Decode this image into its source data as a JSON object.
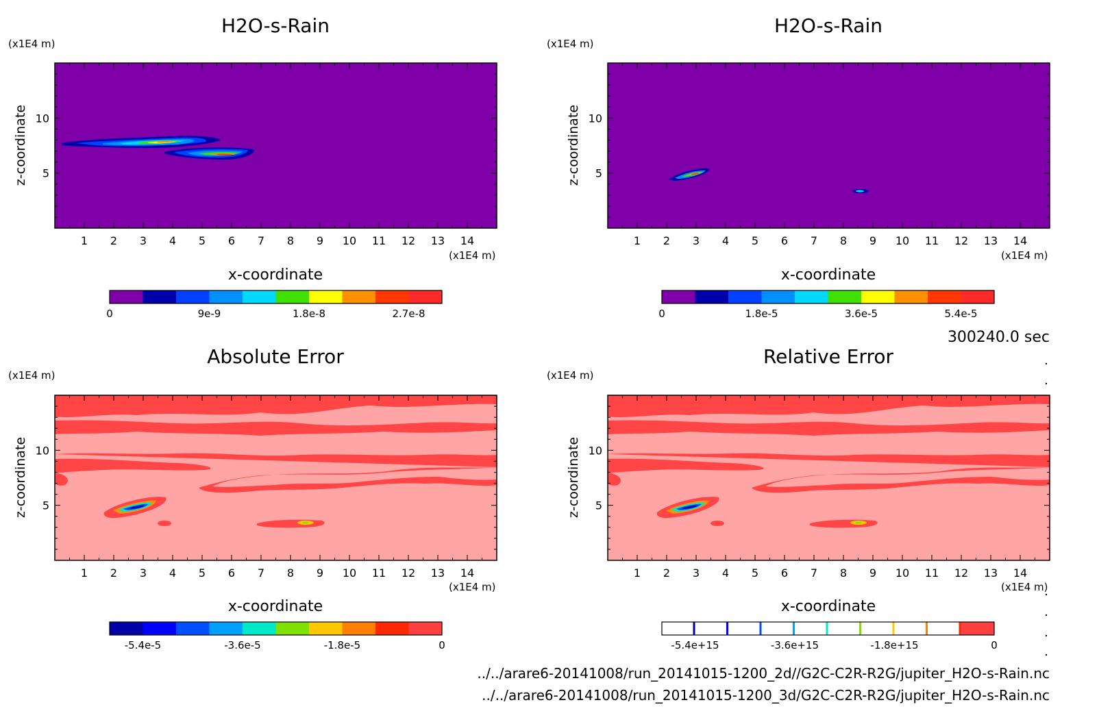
{
  "chart_data": [
    {
      "type": "heatmap",
      "title": "H2O-s-Rain",
      "xlabel": "x-coordinate",
      "ylabel": "z-coordinate",
      "x_unit": "(x1E4 m)",
      "y_unit": "(x1E4 m)",
      "xlim": [
        0,
        15
      ],
      "ylim": [
        0,
        15
      ],
      "x_ticks": [
        1,
        2,
        3,
        4,
        5,
        6,
        7,
        8,
        9,
        10,
        11,
        12,
        13,
        14
      ],
      "y_ticks": [
        5,
        10
      ],
      "colorbar": {
        "colors": [
          "#7f00a8",
          "#0000a8",
          "#0040ff",
          "#0090ff",
          "#00d8ff",
          "#40e000",
          "#ffff00",
          "#ff9000",
          "#ff3800",
          "#ff2a2a"
        ],
        "tick_labels": [
          "0",
          "9e-9",
          "1.8e-8",
          "2.7e-8"
        ],
        "tick_values": [
          0,
          9e-09,
          1.8e-08,
          2.7e-08
        ],
        "range": [
          0,
          3e-08
        ]
      }
    },
    {
      "type": "heatmap",
      "title": "H2O-s-Rain",
      "xlabel": "x-coordinate",
      "ylabel": "z-coordinate",
      "x_unit": "(x1E4 m)",
      "y_unit": "(x1E4 m)",
      "xlim": [
        0,
        15
      ],
      "ylim": [
        0,
        15
      ],
      "x_ticks": [
        1,
        2,
        3,
        4,
        5,
        6,
        7,
        8,
        9,
        10,
        11,
        12,
        13,
        14
      ],
      "y_ticks": [
        5,
        10
      ],
      "colorbar": {
        "colors": [
          "#7f00a8",
          "#0000a8",
          "#0040ff",
          "#0090ff",
          "#00d8ff",
          "#40e000",
          "#ffff00",
          "#ff9000",
          "#ff3800",
          "#ff2a2a"
        ],
        "tick_labels": [
          "0",
          "1.8e-5",
          "3.6e-5",
          "5.4e-5"
        ],
        "tick_values": [
          0,
          1.8e-05,
          3.6e-05,
          5.4e-05
        ],
        "range": [
          0,
          6e-05
        ]
      }
    },
    {
      "type": "heatmap",
      "title": "Absolute Error",
      "xlabel": "x-coordinate",
      "ylabel": "z-coordinate",
      "x_unit": "(x1E4 m)",
      "y_unit": "(x1E4 m)",
      "xlim": [
        0,
        15
      ],
      "ylim": [
        0,
        15
      ],
      "x_ticks": [
        1,
        2,
        3,
        4,
        5,
        6,
        7,
        8,
        9,
        10,
        11,
        12,
        13,
        14
      ],
      "y_ticks": [
        5,
        10
      ],
      "colorbar": {
        "colors": [
          "#0000a8",
          "#0000ff",
          "#0050ff",
          "#00a0ff",
          "#00e8c8",
          "#80e000",
          "#ffc800",
          "#ff8000",
          "#ff2800",
          "#ff4040"
        ],
        "tick_labels": [
          "-5.4e-5",
          "-3.6e-5",
          "-1.8e-5",
          "0"
        ],
        "tick_values": [
          -5.4e-05,
          -3.6e-05,
          -1.8e-05,
          0
        ],
        "range": [
          -6e-05,
          0
        ]
      }
    },
    {
      "type": "heatmap",
      "title": "Relative Error",
      "xlabel": "x-coordinate",
      "ylabel": "z-coordinate",
      "x_unit": "(x1E4 m)",
      "y_unit": "(x1E4 m)",
      "xlim": [
        0,
        15
      ],
      "ylim": [
        0,
        15
      ],
      "x_ticks": [
        1,
        2,
        3,
        4,
        5,
        6,
        7,
        8,
        9,
        10,
        11,
        12,
        13,
        14
      ],
      "y_ticks": [
        5,
        10
      ],
      "colorbar": {
        "colors": [
          "#0000a8",
          "#0000ff",
          "#0050ff",
          "#00a0ff",
          "#00e8c8",
          "#80e000",
          "#ffc800",
          "#ff8000",
          "#ff2800",
          "#ff4040"
        ],
        "tick_labels": [
          "-5.4e+15",
          "-3.6e+15",
          "-1.8e+15",
          "0"
        ],
        "tick_values": [
          -5400000000000000.0,
          -3600000000000000.0,
          -1800000000000000.0,
          0
        ],
        "range": [
          -6000000000000000.0,
          0
        ]
      }
    }
  ],
  "time_label": "300240.0 sec",
  "file_paths": [
    "../../arare6-20141008/run_20141015-1200_2d//G2C-C2R-R2G/jupiter_H2O-s-Rain.nc",
    "../../arare6-20141008/run_20141015-1200_3d/G2C-C2R-R2G/jupiter_H2O-s-Rain.nc"
  ],
  "colors": {
    "purple_bg": "#7f00a8",
    "pink_bg": "#ffa5a5",
    "red_band": "#ff4545"
  }
}
